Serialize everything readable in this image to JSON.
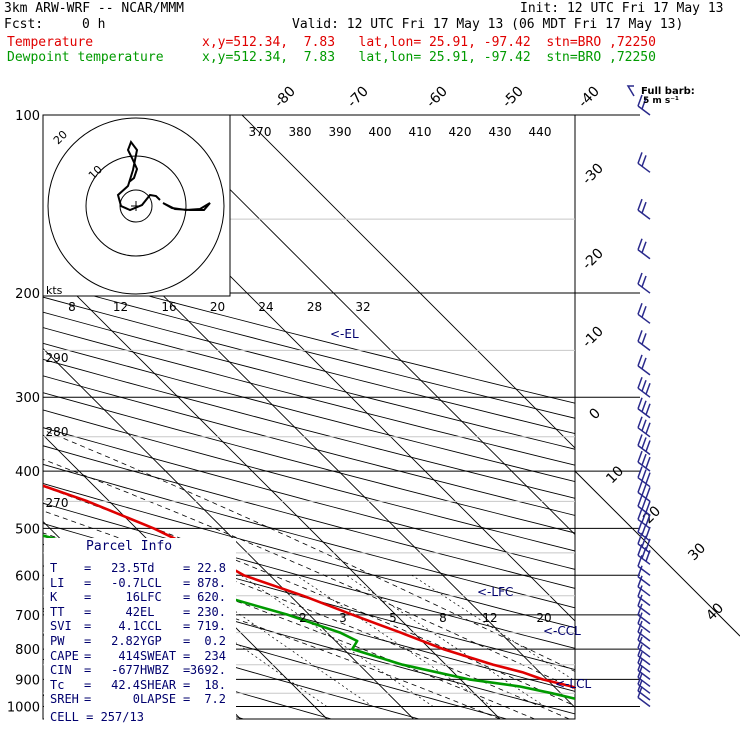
{
  "header": {
    "model": "3km ARW-WRF -- NCAR/MMM",
    "init": "Init: 12 UTC Fri 17 May 13",
    "fcst_label": "Fcst:",
    "fcst_value": "0 h",
    "valid": "Valid: 12 UTC Fri 17 May 13 (06 MDT Fri 17 May 13)",
    "temp_line": {
      "name": "Temperature",
      "info": "x,y=512.34,  7.83   lat,lon= 25.91, -97.42  stn=BRO ,72250"
    },
    "dew_line": {
      "name": "Dewpoint temperature",
      "info": "x,y=512.34,  7.83   lat,lon= 25.91, -97.42  stn=BRO ,72250"
    },
    "barb_legend_1": "Full barb:",
    "barb_legend_2": "5 m s⁻¹"
  },
  "colors": {
    "temperature": "#e00000",
    "dewpoint": "#009a00",
    "parcel_text": "#00006e",
    "grid": "#000000",
    "wind": "#2a2a8c"
  },
  "chart_data": {
    "type": "line",
    "subtype": "skew-T log-P sounding",
    "y_axis": "pressure (hPa)",
    "pressure_labels": [
      100,
      200,
      300,
      400,
      500,
      600,
      700,
      800,
      900,
      1000
    ],
    "isotherm_labels": [
      -80,
      -70,
      -60,
      -50,
      -40,
      -30,
      -20,
      -10,
      0,
      10,
      20,
      30,
      40
    ],
    "theta_labels": [
      370,
      380,
      390,
      400,
      410,
      420,
      430,
      440
    ],
    "theta_low_labels": [
      290,
      280,
      270
    ],
    "mixing_ratio_labels": [
      2,
      3,
      5,
      8,
      12,
      20
    ],
    "series": [
      {
        "name": "Temperature",
        "pressure": [
          1000,
          975,
          950,
          925,
          900,
          875,
          850,
          800,
          750,
          700,
          650,
          600,
          550,
          500,
          450,
          400,
          350,
          300,
          250,
          200,
          175,
          150,
          125,
          100
        ],
        "values": [
          23.5,
          24.5,
          23.5,
          22.0,
          19.5,
          18.0,
          15.5,
          11.5,
          8.5,
          5.0,
          1.5,
          -3.0,
          -5.0,
          -8.0,
          -12.5,
          -19.0,
          -25.5,
          -32.5,
          -41.5,
          -52.0,
          -58.5,
          -63.5,
          -66.0,
          -68.0
        ]
      },
      {
        "name": "Dewpoint temperature",
        "pressure": [
          1000,
          975,
          950,
          925,
          900,
          850,
          800,
          775,
          750,
          700,
          650,
          600,
          550,
          500,
          450,
          400,
          350,
          300,
          250,
          200,
          175,
          150,
          125,
          100
        ],
        "values": [
          22.8,
          21.5,
          19.0,
          16.0,
          11.0,
          5.0,
          1.0,
          2.5,
          1.5,
          -2.5,
          -8.0,
          -11.0,
          -16.0,
          -24.0,
          -30.0,
          -27.0,
          -20.0,
          -22.0,
          -36.0,
          -50.0,
          -65.0,
          -79.0,
          -87.0,
          -94.0
        ]
      }
    ],
    "level_markers": [
      "<-EL",
      "<-LFC",
      "<-CCL",
      "<-LCL"
    ],
    "hodograph": {
      "speed_rings_label": [
        "10",
        "20"
      ],
      "axis_label": "kts",
      "speed_axis_ticks": [
        8,
        12,
        16,
        20,
        24,
        28,
        32
      ]
    }
  },
  "parcel_info": {
    "title": "Parcel Info",
    "rows": [
      {
        "k1": "T",
        "v1": "23.5",
        "k2": "Td",
        "v2": "22.8"
      },
      {
        "k1": "LI",
        "v1": "-0.7",
        "k2": "LCL",
        "v2": "878."
      },
      {
        "k1": "K",
        "v1": "16",
        "k2": "LFC",
        "v2": "620."
      },
      {
        "k1": "TT",
        "v1": "42",
        "k2": "EL",
        "v2": "230."
      },
      {
        "k1": "SVI",
        "v1": "4.1",
        "k2": "CCL",
        "v2": "719."
      },
      {
        "k1": "PW",
        "v1": "2.82",
        "k2": "YGP",
        "v2": "0.2"
      },
      {
        "k1": "CAPE",
        "v1": "414",
        "k2": "SWEAT",
        "v2": "234"
      },
      {
        "k1": "CIN",
        "v1": "-677",
        "k2": "HWBZ",
        "v2": "3692."
      },
      {
        "k1": "Tc",
        "v1": "42.4",
        "k2": "SHEAR",
        "v2": "18."
      },
      {
        "k1": "SREH",
        "v1": "0",
        "k2": "LAPSE",
        "v2": "7.2"
      }
    ],
    "cell": "CELL = 257/13"
  }
}
